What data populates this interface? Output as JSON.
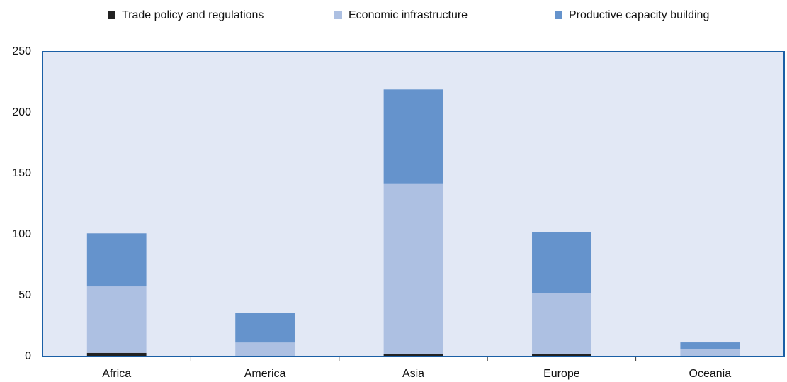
{
  "chart_data": {
    "type": "stacked_bar",
    "categories": [
      "Africa",
      "America",
      "Asia",
      "Europe",
      "Oceania"
    ],
    "series": [
      {
        "name": "Trade policy and regulations",
        "color": "#222222",
        "values": [
          3,
          0.5,
          2,
          2,
          0.2
        ]
      },
      {
        "name": "Economic infrastructure",
        "color": "#adc0e2",
        "values": [
          54.5,
          11,
          140,
          50,
          6.2
        ]
      },
      {
        "name": "Productive capacity building",
        "color": "#6593cc",
        "values": [
          43.5,
          24.5,
          77,
          50,
          5.2
        ]
      }
    ],
    "ylim": [
      0,
      250
    ],
    "yticks": [
      0,
      50,
      100,
      150,
      200,
      250
    ],
    "grid": false,
    "legend": "top"
  }
}
